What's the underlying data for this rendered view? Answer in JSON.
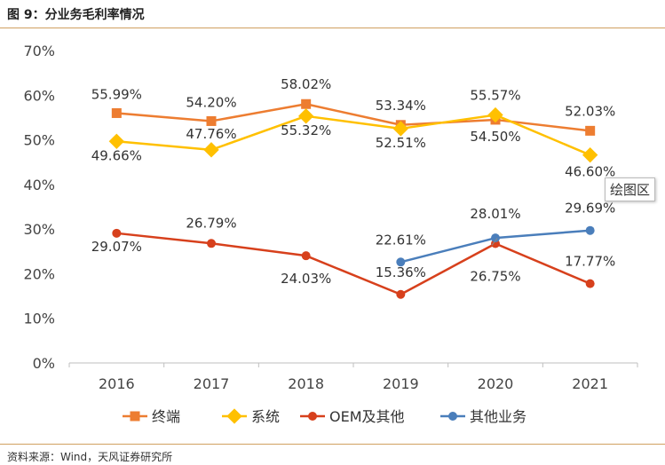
{
  "page": {
    "title": "图 9：分业务毛利率情况",
    "source": "资料来源：Wind，天风证券研究所",
    "tooltip": "绘图区"
  },
  "chart_data": {
    "type": "line",
    "title": "分业务毛利率情况",
    "xlabel": "",
    "ylabel": "",
    "categories": [
      "2016",
      "2017",
      "2018",
      "2019",
      "2020",
      "2021"
    ],
    "ylim": [
      0,
      70
    ],
    "yticks": [
      "0%",
      "10%",
      "20%",
      "30%",
      "40%",
      "50%",
      "60%",
      "70%"
    ],
    "series": [
      {
        "name": "终端",
        "color": "#ED7D31",
        "marker": "square",
        "values": [
          55.99,
          54.2,
          58.02,
          53.34,
          54.5,
          52.03
        ],
        "labels": [
          "55.99%",
          "54.20%",
          "58.02%",
          "53.34%",
          "54.50%",
          "52.03%"
        ]
      },
      {
        "name": "系统",
        "color": "#FFC000",
        "marker": "diamond",
        "values": [
          49.66,
          47.76,
          55.32,
          52.51,
          55.57,
          46.6
        ],
        "labels": [
          "49.66%",
          "47.76%",
          "55.32%",
          "52.51%",
          "55.57%",
          "46.60%"
        ]
      },
      {
        "name": "OEM及其他",
        "color": "#D7401C",
        "marker": "circle",
        "values": [
          29.07,
          26.79,
          24.03,
          15.36,
          26.75,
          17.77
        ],
        "labels": [
          "29.07%",
          "26.79%",
          "24.03%",
          "15.36%",
          "26.75%",
          "17.77%"
        ]
      },
      {
        "name": "其他业务",
        "color": "#4A7EBB",
        "marker": "circle",
        "values": [
          null,
          null,
          null,
          22.61,
          28.01,
          29.69
        ],
        "labels": [
          null,
          null,
          null,
          "22.61%",
          "28.01%",
          "29.69%"
        ]
      }
    ],
    "legend_position": "bottom",
    "grid": false
  }
}
